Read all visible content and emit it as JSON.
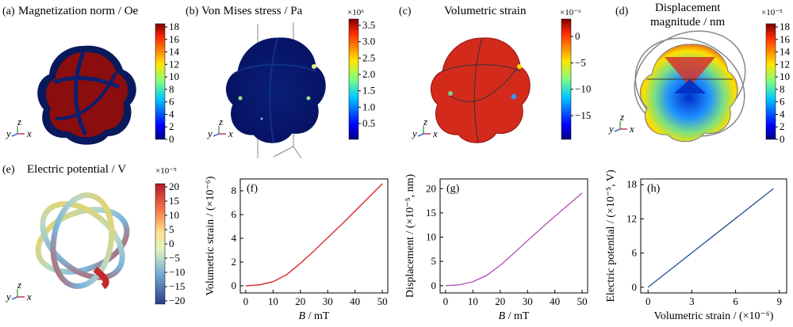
{
  "panels": [
    {
      "label": "(a)",
      "title": "Magnetization norm / Oe",
      "cb_exp": "",
      "cb_ticks": [
        "18",
        "16",
        "14",
        "12",
        "10",
        "8",
        "6",
        "4",
        "2",
        "0"
      ],
      "cb_scheme": "jet"
    },
    {
      "label": "(b)",
      "title": "Von Mises stress / Pa",
      "cb_exp": "×10⁶",
      "cb_ticks": [
        "3.5",
        "3.0",
        "2.5",
        "2.0",
        "1.5",
        "1.0",
        "0.5"
      ],
      "cb_scheme": "jet"
    },
    {
      "label": "(c)",
      "title": "Volumetric strain",
      "cb_exp": "×10⁻⁶",
      "cb_ticks": [
        "0",
        "−5",
        "−10",
        "−15"
      ],
      "cb_scheme": "jet"
    },
    {
      "label": "(d)",
      "title_line1": "Displacement",
      "title_line2": "magnitude / nm",
      "cb_exp": "×10⁻⁵",
      "cb_ticks": [
        "18",
        "16",
        "14",
        "12",
        "10",
        "8",
        "6",
        "4",
        "2",
        "0"
      ],
      "cb_scheme": "jet"
    },
    {
      "label": "(e)",
      "title": "Electric potential / V",
      "cb_exp": "×10⁻⁵",
      "cb_ticks": [
        "20",
        "15",
        "10",
        "5",
        "0",
        "−5",
        "−10",
        "−15",
        "−20"
      ],
      "cb_scheme": "diverging"
    }
  ],
  "axes_triad": {
    "y": "y",
    "z": "z",
    "x": "x"
  },
  "colors": {
    "jet_low": "#00007f",
    "jet_high": "#7f0000",
    "div_low": "#2c3a8c",
    "div_high": "#b2182b",
    "line_f": "#d7191c",
    "line_g": "#b04bb4",
    "line_h": "#1f4e8c"
  },
  "chart_data": [
    {
      "type": "line",
      "label": "(f)",
      "xlabel_italic": "B",
      "xlabel_rest": " / mT",
      "ylabel": "Volumetric strain / (×10⁻⁶)",
      "xlim": [
        -2,
        52
      ],
      "ylim": [
        -0.6,
        9
      ],
      "xticks": [
        0,
        10,
        20,
        30,
        40,
        50
      ],
      "yticks": [
        0,
        2,
        4,
        6,
        8
      ],
      "x": [
        0,
        5,
        10,
        15,
        20,
        25,
        30,
        35,
        40,
        45,
        50
      ],
      "y": [
        0,
        0.08,
        0.35,
        0.95,
        1.9,
        2.95,
        4.05,
        5.15,
        6.3,
        7.45,
        8.6
      ],
      "color": "#d7191c"
    },
    {
      "type": "line",
      "label": "(g)",
      "xlabel_italic": "B",
      "xlabel_rest": " / mT",
      "ylabel": "Displacement / (×10⁻⁵, nm)",
      "xlim": [
        -2,
        52
      ],
      "ylim": [
        -1.5,
        22
      ],
      "xticks": [
        0,
        10,
        20,
        30,
        40,
        50
      ],
      "yticks": [
        0,
        5,
        10,
        15,
        20
      ],
      "x": [
        0,
        5,
        10,
        15,
        20,
        25,
        30,
        35,
        40,
        45,
        50
      ],
      "y": [
        0,
        0.2,
        0.8,
        2.1,
        4.2,
        6.7,
        9.3,
        11.8,
        14.3,
        16.7,
        19.1
      ],
      "color": "#b04bb4"
    },
    {
      "type": "line",
      "label": "(h)",
      "xlabel": "Volumetric strain / (×10⁻⁶)",
      "ylabel": "Electric potential / (×10⁻⁵, V)",
      "xlim": [
        -0.5,
        9.5
      ],
      "ylim": [
        -1,
        19
      ],
      "xticks": [
        0,
        3,
        6,
        9
      ],
      "yticks": [
        0,
        6,
        12,
        18
      ],
      "x": [
        0,
        8.6
      ],
      "y": [
        0,
        17.3
      ],
      "color": "#1f4e8c"
    }
  ]
}
